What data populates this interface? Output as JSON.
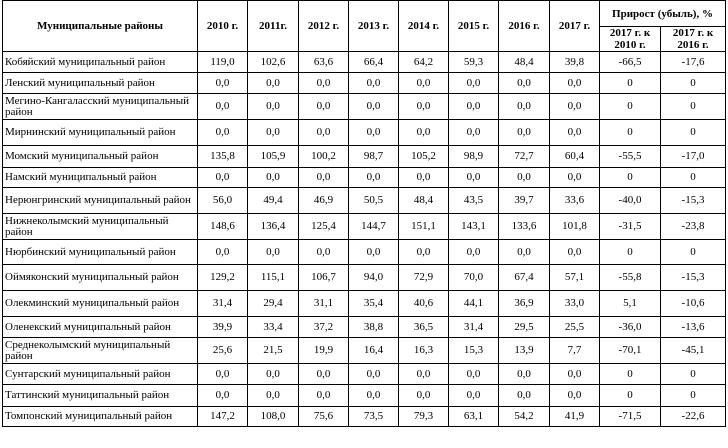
{
  "table": {
    "header": {
      "district": "Муниципальные районы",
      "years": [
        "2010 г.",
        "2011г.",
        "2012 г.",
        "2013 г.",
        "2014 г.",
        "2015 г.",
        "2016 г.",
        "2017 г."
      ],
      "growth_group": "Прирост (убыль), %",
      "growth_cols": [
        "2017 г. к 2010 г.",
        "2017 г. к 2016 г."
      ]
    },
    "rows": [
      {
        "name": "Кобяйский муниципальный район",
        "values": [
          "119,0",
          "102,6",
          "63,6",
          "66,4",
          "64,2",
          "59,3",
          "48,4",
          "39,8"
        ],
        "growth": [
          "-66,5",
          "-17,6"
        ]
      },
      {
        "name": "Ленский муниципальный район",
        "values": [
          "0,0",
          "0,0",
          "0,0",
          "0,0",
          "0,0",
          "0,0",
          "0,0",
          "0,0"
        ],
        "growth": [
          "0",
          "0"
        ]
      },
      {
        "name": "Мегино-Кангаласский муниципальный район",
        "values": [
          "0,0",
          "0,0",
          "0,0",
          "0,0",
          "0,0",
          "0,0",
          "0,0",
          "0,0"
        ],
        "growth": [
          "0",
          "0"
        ]
      },
      {
        "name": "Мирнинский муниципальный район",
        "values": [
          "0,0",
          "0,0",
          "0,0",
          "0,0",
          "0,0",
          "0,0",
          "0,0",
          "0,0"
        ],
        "growth": [
          "0",
          "0"
        ]
      },
      {
        "name": "Момский муниципальный район",
        "values": [
          "135,8",
          "105,9",
          "100,2",
          "98,7",
          "105,2",
          "98,9",
          "72,7",
          "60,4"
        ],
        "growth": [
          "-55,5",
          "-17,0"
        ]
      },
      {
        "name": "Намский муниципальный район",
        "values": [
          "0,0",
          "0,0",
          "0,0",
          "0,0",
          "0,0",
          "0,0",
          "0,0",
          "0,0"
        ],
        "growth": [
          "0",
          "0"
        ]
      },
      {
        "name": "Нерюнгринский муниципальный район",
        "values": [
          "56,0",
          "49,4",
          "46,9",
          "50,5",
          "48,4",
          "43,5",
          "39,7",
          "33,6"
        ],
        "growth": [
          "-40,0",
          "-15,3"
        ]
      },
      {
        "name": "Нижнеколымский муниципальный район",
        "values": [
          "148,6",
          "136,4",
          "125,4",
          "144,7",
          "151,1",
          "143,1",
          "133,6",
          "101,8"
        ],
        "growth": [
          "-31,5",
          "-23,8"
        ]
      },
      {
        "name": "Нюрбинский муниципальный район",
        "values": [
          "0,0",
          "0,0",
          "0,0",
          "0,0",
          "0,0",
          "0,0",
          "0,0",
          "0,0"
        ],
        "growth": [
          "0",
          "0"
        ]
      },
      {
        "name": "Оймяконский муниципальный район",
        "values": [
          "129,2",
          "115,1",
          "106,7",
          "94,0",
          "72,9",
          "70,0",
          "67,4",
          "57,1"
        ],
        "growth": [
          "-55,8",
          "-15,3"
        ]
      },
      {
        "name": "Олекминский муниципальный район",
        "values": [
          "31,4",
          "29,4",
          "31,1",
          "35,4",
          "40,6",
          "44,1",
          "36,9",
          "33,0"
        ],
        "growth": [
          "5,1",
          "-10,6"
        ]
      },
      {
        "name": "Оленекский муниципальный район",
        "values": [
          "39,9",
          "33,4",
          "37,2",
          "38,8",
          "36,5",
          "31,4",
          "29,5",
          "25,5"
        ],
        "growth": [
          "-36,0",
          "-13,6"
        ]
      },
      {
        "name": "Среднеколымский муниципальный район",
        "values": [
          "25,6",
          "21,5",
          "19,9",
          "16,4",
          "16,3",
          "15,3",
          "13,9",
          "7,7"
        ],
        "growth": [
          "-70,1",
          "-45,1"
        ]
      },
      {
        "name": "Сунтарский муниципальный район",
        "values": [
          "0,0",
          "0,0",
          "0,0",
          "0,0",
          "0,0",
          "0,0",
          "0,0",
          "0,0"
        ],
        "growth": [
          "0",
          "0"
        ]
      },
      {
        "name": "Таттинский муниципальный район",
        "values": [
          "0,0",
          "0,0",
          "0,0",
          "0,0",
          "0,0",
          "0,0",
          "0,0",
          "0,0"
        ],
        "growth": [
          "0",
          "0"
        ]
      },
      {
        "name": "Томпонский муниципальный район",
        "values": [
          "147,2",
          "108,0",
          "75,6",
          "73,5",
          "79,3",
          "63,1",
          "54,2",
          "41,9"
        ],
        "growth": [
          "-71,5",
          "-22,6"
        ]
      }
    ]
  }
}
